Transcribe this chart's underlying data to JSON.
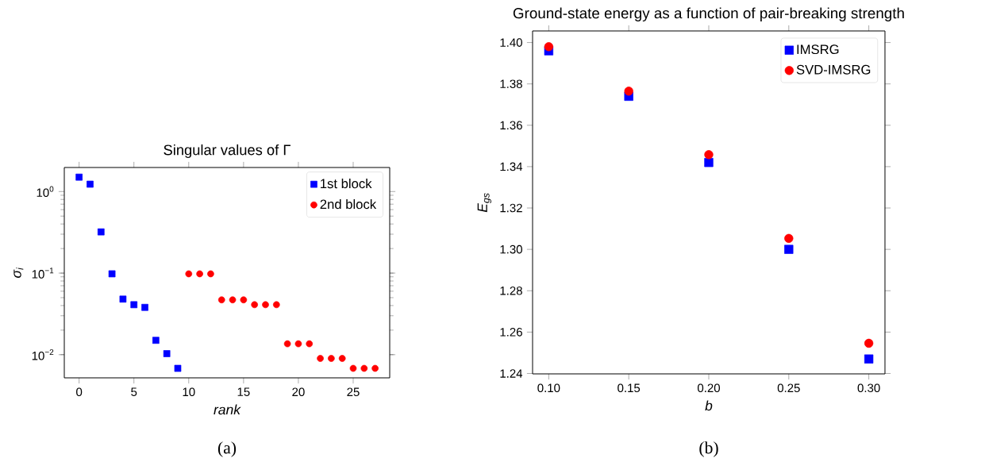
{
  "chart_data": [
    {
      "type": "scatter",
      "title": "Singular values of Γ",
      "xlabel": "rank",
      "ylabel": "σ$_{i}$",
      "log": "y",
      "legend": "top right",
      "xlim": [
        -1.35,
        28.33
      ],
      "ylim": [
        0.0052,
        1.97
      ],
      "xticks": [
        0,
        5,
        10,
        15,
        20,
        25
      ],
      "yticks": [
        {
          "value": 0.01,
          "label": "10$^{−2}$"
        },
        {
          "value": 0.1,
          "label": "10$^{−1}$"
        },
        {
          "value": 1,
          "label": "10$^{0}$"
        }
      ],
      "annotations": [
        "(a)"
      ],
      "series": [
        {
          "name": "1st block",
          "color": "#0000ff",
          "marker": "square",
          "x": [
            0,
            1,
            2,
            3,
            4,
            5,
            6,
            7,
            8,
            9
          ],
          "values": [
            1.5,
            1.23,
            0.32,
            0.098,
            0.048,
            0.041,
            0.038,
            0.015,
            0.0103,
            0.0068
          ]
        },
        {
          "name": "2nd block",
          "color": "#ff0000",
          "marker": "circle",
          "x": [
            10,
            11,
            12,
            13,
            14,
            15,
            16,
            17,
            18,
            19,
            20,
            21,
            22,
            23,
            24,
            25,
            26,
            27
          ],
          "values": [
            0.098,
            0.098,
            0.098,
            0.047,
            0.047,
            0.047,
            0.041,
            0.041,
            0.041,
            0.0136,
            0.0136,
            0.0136,
            0.009,
            0.009,
            0.009,
            0.0068,
            0.0068,
            0.0068
          ]
        }
      ]
    },
    {
      "type": "scatter",
      "title": "Ground-state energy as a function of pair-breaking strength",
      "xlabel": "b",
      "ylabel": "E$_{gs}$",
      "legend": "top right",
      "xlim": [
        0.0899,
        0.3101
      ],
      "ylim": [
        1.2398,
        1.4056
      ],
      "xticks": [
        {
          "value": 0.1,
          "label": "0.10"
        },
        {
          "value": 0.15,
          "label": "0.15"
        },
        {
          "value": 0.2,
          "label": "0.20"
        },
        {
          "value": 0.25,
          "label": "0.25"
        },
        {
          "value": 0.3,
          "label": "0.30"
        }
      ],
      "yticks": [
        {
          "value": 1.24,
          "label": "1.24"
        },
        {
          "value": 1.26,
          "label": "1.26"
        },
        {
          "value": 1.28,
          "label": "1.28"
        },
        {
          "value": 1.3,
          "label": "1.30"
        },
        {
          "value": 1.32,
          "label": "1.32"
        },
        {
          "value": 1.34,
          "label": "1.34"
        },
        {
          "value": 1.36,
          "label": "1.36"
        },
        {
          "value": 1.38,
          "label": "1.38"
        },
        {
          "value": 1.4,
          "label": "1.40"
        }
      ],
      "annotations": [
        "(b)"
      ],
      "series": [
        {
          "name": "IMSRG",
          "color": "#0000ff",
          "marker": "square",
          "x": [
            0.1,
            0.15,
            0.2,
            0.25,
            0.3
          ],
          "values": [
            1.396,
            1.374,
            1.342,
            1.3,
            1.247
          ]
        },
        {
          "name": "SVD-IMSRG",
          "color": "#ff0000",
          "marker": "circle",
          "x": [
            0.1,
            0.15,
            0.2,
            0.25,
            0.3
          ],
          "values": [
            1.398,
            1.3765,
            1.3458,
            1.3053,
            1.2546
          ]
        }
      ]
    }
  ]
}
